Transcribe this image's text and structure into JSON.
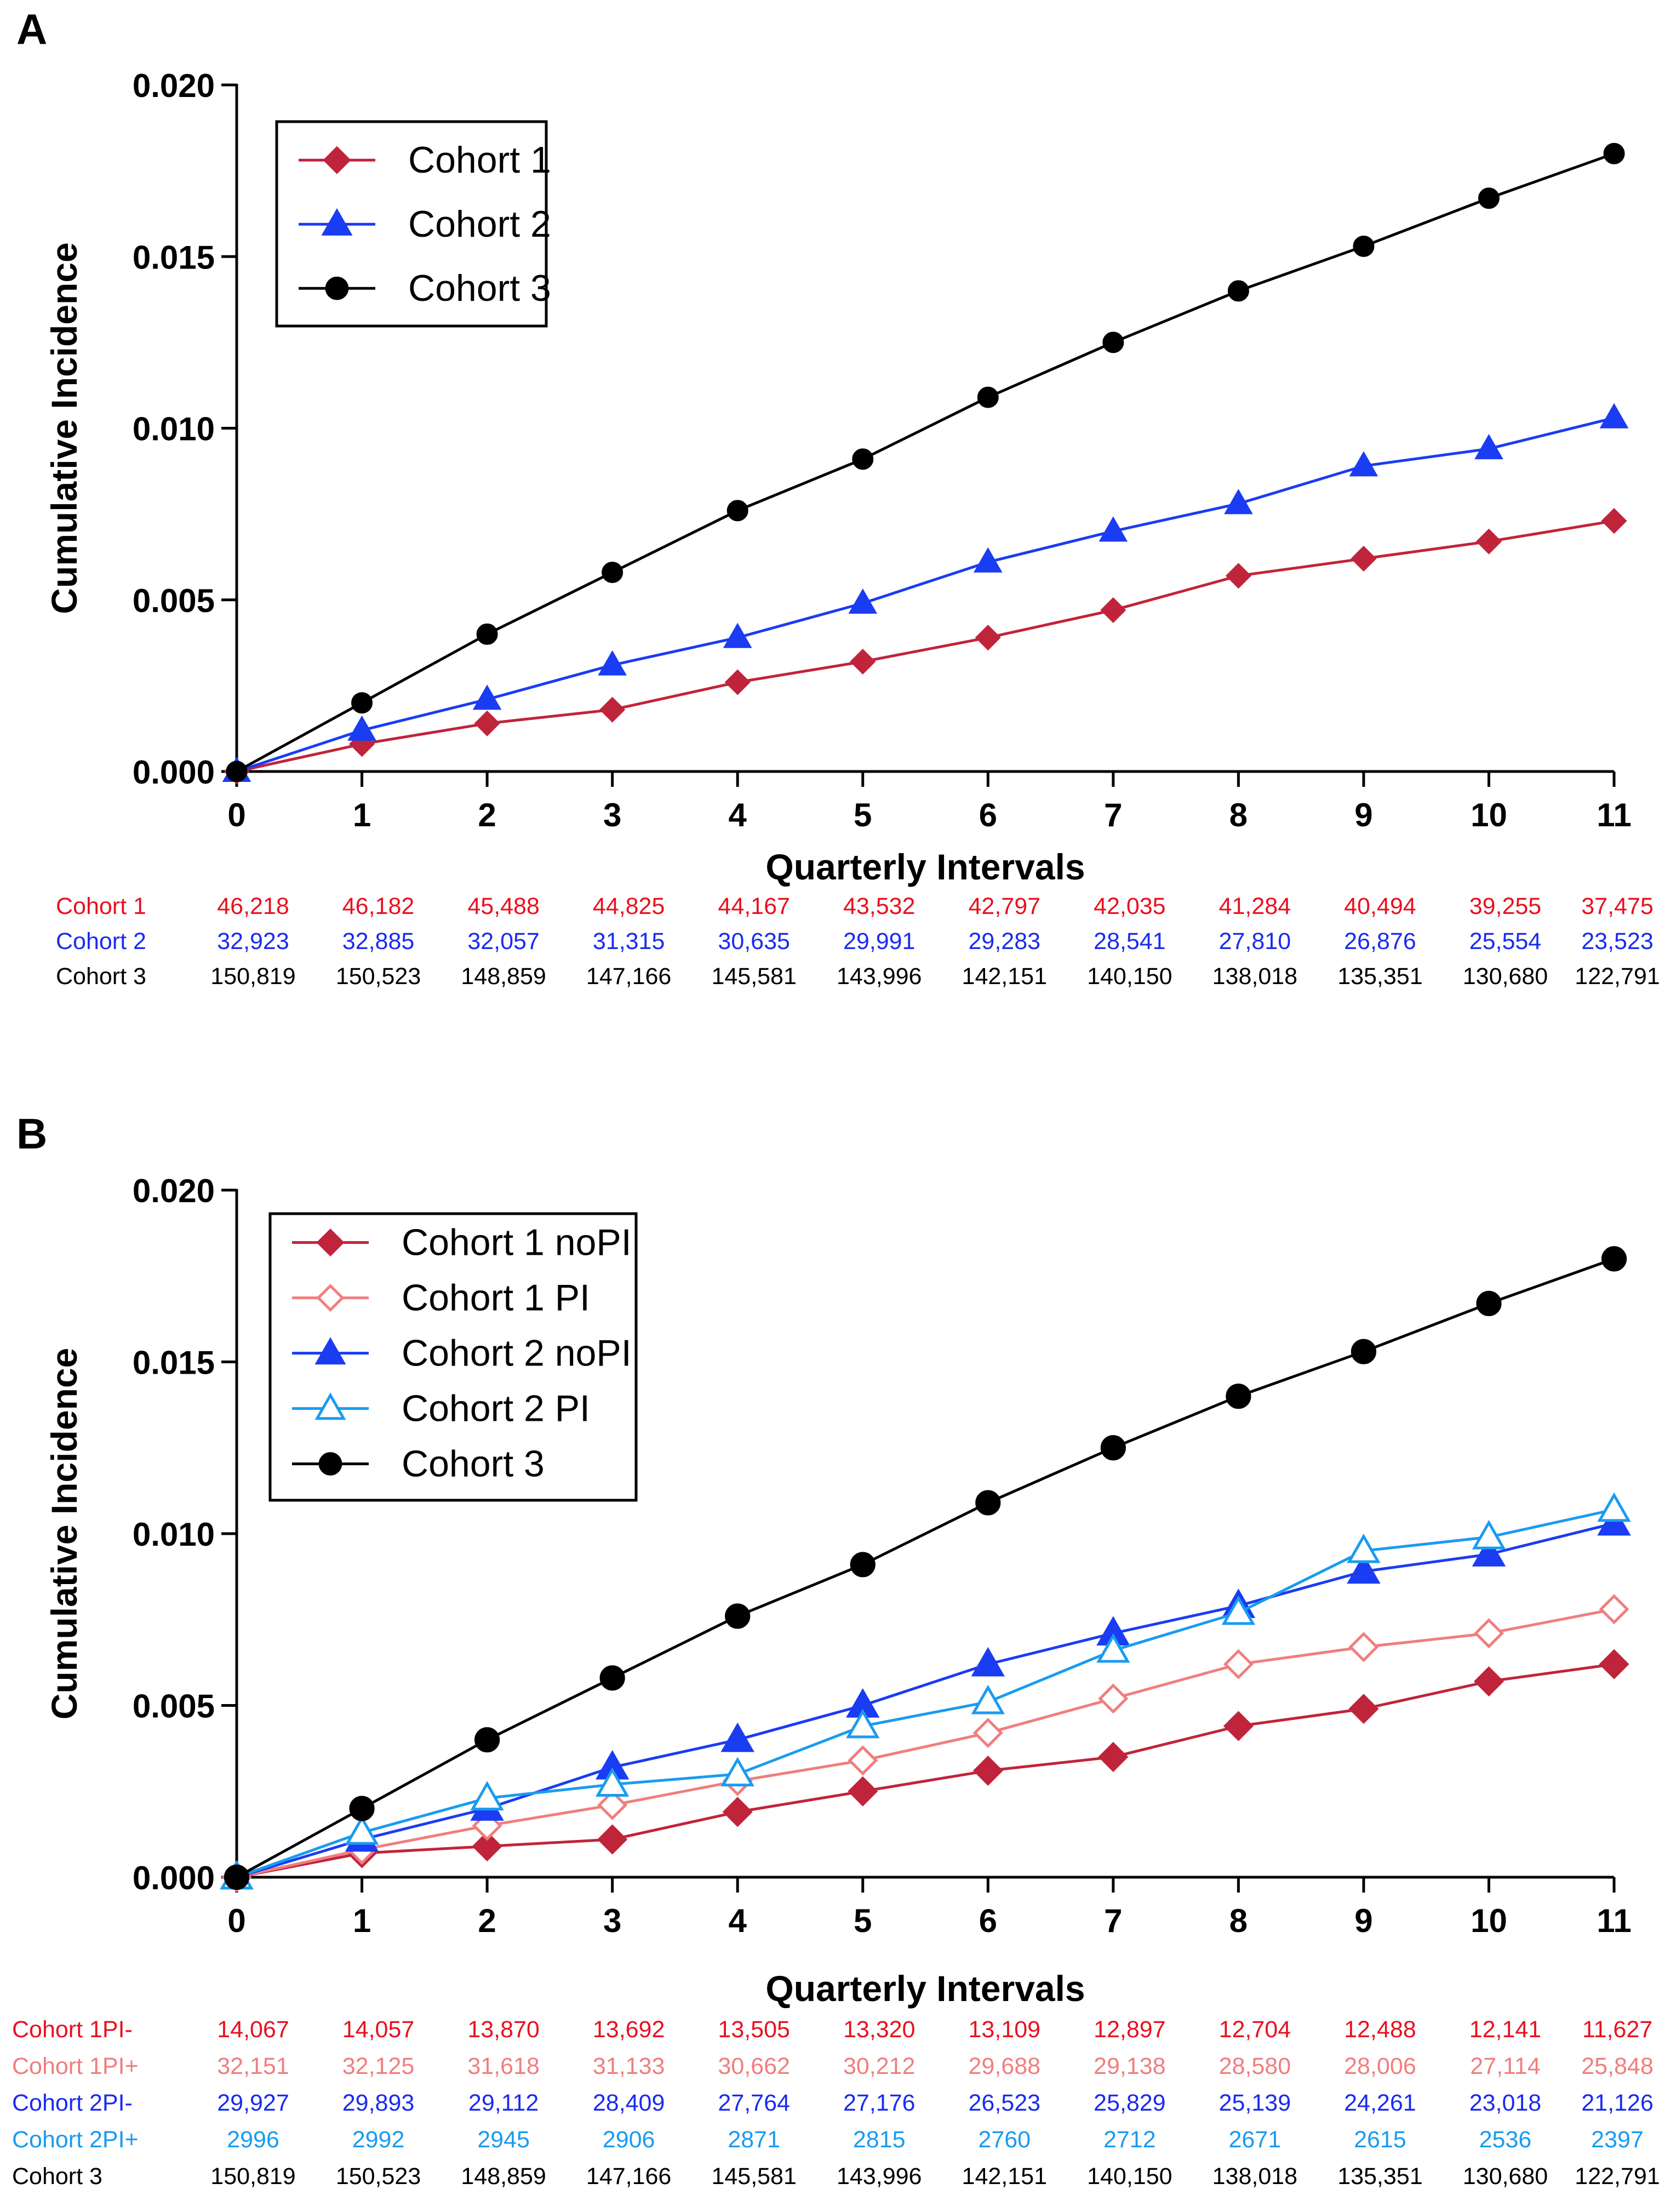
{
  "chart_data": [
    {
      "type": "line",
      "panel_label": "A",
      "xlabel": "Quarterly Intervals",
      "ylabel": "Cumulative Incidence",
      "x": [
        0,
        1,
        2,
        3,
        4,
        5,
        6,
        7,
        8,
        9,
        10,
        11
      ],
      "xlim": [
        0,
        11
      ],
      "ylim": [
        0,
        0.02
      ],
      "yticks": [
        "0.000",
        "0.005",
        "0.010",
        "0.015",
        "0.020"
      ],
      "yticks_values": [
        0,
        0.005,
        0.01,
        0.015,
        0.02
      ],
      "legend_position": "top-left",
      "series": [
        {
          "name": "Cohort 1",
          "color": "#c0243a",
          "marker": "diamond-filled",
          "values": [
            0,
            0.0008,
            0.0014,
            0.0018,
            0.0026,
            0.0032,
            0.0039,
            0.0047,
            0.0057,
            0.0062,
            0.0067,
            0.0073
          ]
        },
        {
          "name": "Cohort 2",
          "color": "#1a3cf2",
          "marker": "triangle-filled",
          "values": [
            0,
            0.0012,
            0.0021,
            0.0031,
            0.0039,
            0.0049,
            0.0061,
            0.007,
            0.0078,
            0.0089,
            0.0094,
            0.0103
          ]
        },
        {
          "name": "Cohort 3",
          "color": "#000000",
          "marker": "circle-filled",
          "values": [
            0,
            0.002,
            0.004,
            0.0058,
            0.0076,
            0.0091,
            0.0109,
            0.0125,
            0.014,
            0.0153,
            0.0167,
            0.018
          ]
        }
      ],
      "risk_table": [
        {
          "label": "Cohort 1",
          "color": "#e8111f",
          "values": [
            "46,218",
            "46,182",
            "45,488",
            "44,825",
            "44,167",
            "43,532",
            "42,797",
            "42,035",
            "41,284",
            "40,494",
            "39,255",
            "37,475"
          ]
        },
        {
          "label": "Cohort 2",
          "color": "#1a2bf0",
          "values": [
            "32,923",
            "32,885",
            "32,057",
            "31,315",
            "30,635",
            "29,991",
            "29,283",
            "28,541",
            "27,810",
            "26,876",
            "25,554",
            "23,523"
          ]
        },
        {
          "label": "Cohort 3",
          "color": "#000000",
          "values": [
            "150,819",
            "150,523",
            "148,859",
            "147,166",
            "145,581",
            "143,996",
            "142,151",
            "140,150",
            "138,018",
            "135,351",
            "130,680",
            "122,791"
          ]
        }
      ]
    },
    {
      "type": "line",
      "panel_label": "B",
      "xlabel": "Quarterly Intervals",
      "ylabel": "Cumulative Incidence",
      "x": [
        0,
        1,
        2,
        3,
        4,
        5,
        6,
        7,
        8,
        9,
        10,
        11
      ],
      "xlim": [
        0,
        11
      ],
      "ylim": [
        0,
        0.02
      ],
      "yticks": [
        "0.000",
        "0.005",
        "0.010",
        "0.015",
        "0.020"
      ],
      "yticks_values": [
        0,
        0.005,
        0.01,
        0.015,
        0.02
      ],
      "legend_position": "top-left",
      "series": [
        {
          "name": "Cohort 1 noPI",
          "color": "#c0243a",
          "marker": "diamond-filled",
          "values": [
            0,
            0.0007,
            0.0009,
            0.0011,
            0.0019,
            0.0025,
            0.0031,
            0.0035,
            0.0044,
            0.0049,
            0.0057,
            0.0062
          ]
        },
        {
          "name": "Cohort 1 PI",
          "color": "#f07e7e",
          "marker": "diamond-open",
          "values": [
            0,
            0.0008,
            0.0015,
            0.0021,
            0.0028,
            0.0034,
            0.0042,
            0.0052,
            0.0062,
            0.0067,
            0.0071,
            0.0078
          ]
        },
        {
          "name": "Cohort 2 noPI",
          "color": "#1a3cf2",
          "marker": "triangle-filled",
          "values": [
            0,
            0.0011,
            0.002,
            0.0032,
            0.004,
            0.005,
            0.0062,
            0.0071,
            0.0079,
            0.0089,
            0.0094,
            0.0103
          ]
        },
        {
          "name": "Cohort 2 PI",
          "color": "#1a9bf0",
          "marker": "triangle-open",
          "values": [
            0,
            0.0013,
            0.0023,
            0.0027,
            0.003,
            0.0044,
            0.0051,
            0.0066,
            0.0077,
            0.0095,
            0.0099,
            0.0107
          ]
        },
        {
          "name": "Cohort 3",
          "color": "#000000",
          "marker": "circle-filled",
          "values": [
            0,
            0.002,
            0.004,
            0.0058,
            0.0076,
            0.0091,
            0.0109,
            0.0125,
            0.014,
            0.0153,
            0.0167,
            0.018
          ]
        }
      ],
      "risk_table": [
        {
          "label": "Cohort 1PI-",
          "color": "#e8111f",
          "values": [
            "14,067",
            "14,057",
            "13,870",
            "13,692",
            "13,505",
            "13,320",
            "13,109",
            "12,897",
            "12,704",
            "12,488",
            "12,141",
            "11,627"
          ]
        },
        {
          "label": "Cohort 1PI+",
          "color": "#f07e7e",
          "values": [
            "32,151",
            "32,125",
            "31,618",
            "31,133",
            "30,662",
            "30,212",
            "29,688",
            "29,138",
            "28,580",
            "28,006",
            "27,114",
            "25,848"
          ]
        },
        {
          "label": "Cohort 2PI-",
          "color": "#1a2bf0",
          "values": [
            "29,927",
            "29,893",
            "29,112",
            "28,409",
            "27,764",
            "27,176",
            "26,523",
            "25,829",
            "25,139",
            "24,261",
            "23,018",
            "21,126"
          ]
        },
        {
          "label": "Cohort 2PI+",
          "color": "#1a9bf0",
          "values": [
            "2996",
            "2992",
            "2945",
            "2906",
            "2871",
            "2815",
            "2760",
            "2712",
            "2671",
            "2615",
            "2536",
            "2397"
          ]
        },
        {
          "label": "Cohort 3",
          "color": "#000000",
          "values": [
            "150,819",
            "150,523",
            "148,859",
            "147,166",
            "145,581",
            "143,996",
            "142,151",
            "140,150",
            "138,018",
            "135,351",
            "130,680",
            "122,791"
          ]
        }
      ]
    }
  ]
}
